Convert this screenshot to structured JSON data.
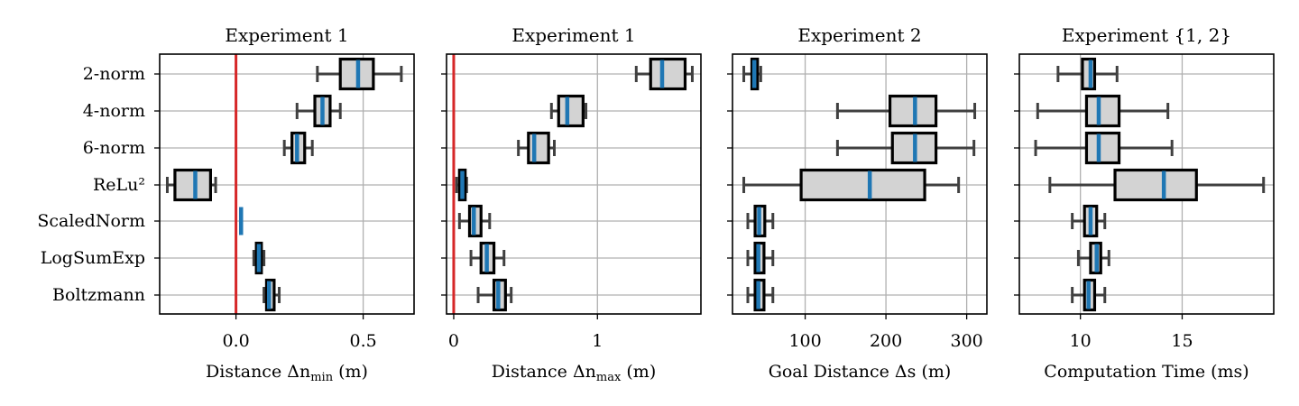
{
  "categories": [
    "2-norm",
    "4-norm",
    "6-norm",
    "ReLu²",
    "ScaledNorm",
    "LogSumExp",
    "Boltzmann"
  ],
  "colors": {
    "median": "#1f77b4",
    "box_fill": "#d3d3d3",
    "whisker": "#404040",
    "reference_line": "#d62728",
    "grid": "#b0b0b0"
  },
  "chart_data": [
    {
      "type": "box",
      "title": "Experiment 1",
      "xlabel": "Distance Δn_min (m)",
      "xlim": [
        -0.3,
        0.7
      ],
      "xticks": [
        0.0,
        0.5
      ],
      "xtick_labels": [
        "0.0",
        "0.5"
      ],
      "reference_line": 0,
      "series": [
        {
          "category": "2-norm",
          "whislo": 0.32,
          "q1": 0.41,
          "med": 0.48,
          "q3": 0.54,
          "whishi": 0.65
        },
        {
          "category": "4-norm",
          "whislo": 0.24,
          "q1": 0.31,
          "med": 0.34,
          "q3": 0.37,
          "whishi": 0.41
        },
        {
          "category": "6-norm",
          "whislo": 0.19,
          "q1": 0.22,
          "med": 0.24,
          "q3": 0.27,
          "whishi": 0.3
        },
        {
          "category": "ReLu²",
          "whislo": -0.27,
          "q1": -0.24,
          "med": -0.16,
          "q3": -0.1,
          "whishi": -0.08
        },
        {
          "category": "ScaledNorm",
          "whislo": 0.02,
          "q1": 0.02,
          "med": 0.02,
          "q3": 0.02,
          "whishi": 0.02
        },
        {
          "category": "LogSumExp",
          "whislo": 0.07,
          "q1": 0.08,
          "med": 0.09,
          "q3": 0.1,
          "whishi": 0.11
        },
        {
          "category": "Boltzmann",
          "whislo": 0.11,
          "q1": 0.12,
          "med": 0.13,
          "q3": 0.15,
          "whishi": 0.17
        }
      ]
    },
    {
      "type": "box",
      "title": "Experiment 1",
      "xlabel": "Distance Δn_max (m)",
      "xlim": [
        -0.05,
        1.72
      ],
      "xticks": [
        0,
        1
      ],
      "xtick_labels": [
        "0",
        "1"
      ],
      "reference_line": 0,
      "series": [
        {
          "category": "2-norm",
          "whislo": 1.27,
          "q1": 1.37,
          "med": 1.45,
          "q3": 1.61,
          "whishi": 1.66
        },
        {
          "category": "4-norm",
          "whislo": 0.68,
          "q1": 0.73,
          "med": 0.79,
          "q3": 0.9,
          "whishi": 0.92
        },
        {
          "category": "6-norm",
          "whislo": 0.45,
          "q1": 0.52,
          "med": 0.56,
          "q3": 0.66,
          "whishi": 0.7
        },
        {
          "category": "ReLu²",
          "whislo": 0.02,
          "q1": 0.04,
          "med": 0.06,
          "q3": 0.08,
          "whishi": 0.09
        },
        {
          "category": "ScaledNorm",
          "whislo": 0.04,
          "q1": 0.11,
          "med": 0.14,
          "q3": 0.19,
          "whishi": 0.25
        },
        {
          "category": "LogSumExp",
          "whislo": 0.12,
          "q1": 0.19,
          "med": 0.23,
          "q3": 0.28,
          "whishi": 0.35
        },
        {
          "category": "Boltzmann",
          "whislo": 0.17,
          "q1": 0.28,
          "med": 0.31,
          "q3": 0.36,
          "whishi": 0.4
        }
      ]
    },
    {
      "type": "box",
      "title": "Experiment 2",
      "xlabel": "Goal Distance Δs (m)",
      "xlim": [
        10,
        325
      ],
      "xticks": [
        100,
        200,
        300
      ],
      "xtick_labels": [
        "100",
        "200",
        "300"
      ],
      "series": [
        {
          "category": "2-norm",
          "whislo": 24,
          "q1": 34,
          "med": 37,
          "q3": 41,
          "whishi": 45
        },
        {
          "category": "4-norm",
          "whislo": 140,
          "q1": 205,
          "med": 236,
          "q3": 262,
          "whishi": 310
        },
        {
          "category": "6-norm",
          "whislo": 140,
          "q1": 208,
          "med": 236,
          "q3": 262,
          "whishi": 309
        },
        {
          "category": "ReLu²",
          "whislo": 24,
          "q1": 95,
          "med": 180,
          "q3": 248,
          "whishi": 290
        },
        {
          "category": "ScaledNorm",
          "whislo": 29,
          "q1": 38,
          "med": 43,
          "q3": 50,
          "whishi": 60
        },
        {
          "category": "LogSumExp",
          "whislo": 29,
          "q1": 38,
          "med": 42,
          "q3": 49,
          "whishi": 60
        },
        {
          "category": "Boltzmann",
          "whislo": 29,
          "q1": 38,
          "med": 42,
          "q3": 49,
          "whishi": 60
        }
      ]
    },
    {
      "type": "box",
      "title": "Experiment {1, 2}",
      "xlabel": "Computation Time (ms)",
      "xlim": [
        7,
        19.5
      ],
      "xticks": [
        10,
        15
      ],
      "xtick_labels": [
        "10",
        "15"
      ],
      "series": [
        {
          "category": "2-norm",
          "whislo": 8.9,
          "q1": 10.1,
          "med": 10.5,
          "q3": 10.7,
          "whishi": 11.8
        },
        {
          "category": "4-norm",
          "whislo": 7.9,
          "q1": 10.3,
          "med": 10.9,
          "q3": 11.9,
          "whishi": 14.3
        },
        {
          "category": "6-norm",
          "whislo": 7.8,
          "q1": 10.3,
          "med": 10.9,
          "q3": 11.9,
          "whishi": 14.5
        },
        {
          "category": "ReLu²",
          "whislo": 8.5,
          "q1": 11.7,
          "med": 14.1,
          "q3": 15.7,
          "whishi": 19.0
        },
        {
          "category": "ScaledNorm",
          "whislo": 9.6,
          "q1": 10.2,
          "med": 10.5,
          "q3": 10.8,
          "whishi": 11.2
        },
        {
          "category": "LogSumExp",
          "whislo": 9.9,
          "q1": 10.5,
          "med": 10.8,
          "q3": 11.0,
          "whishi": 11.4
        },
        {
          "category": "Boltzmann",
          "whislo": 9.6,
          "q1": 10.2,
          "med": 10.4,
          "q3": 10.7,
          "whishi": 11.2
        }
      ]
    }
  ]
}
